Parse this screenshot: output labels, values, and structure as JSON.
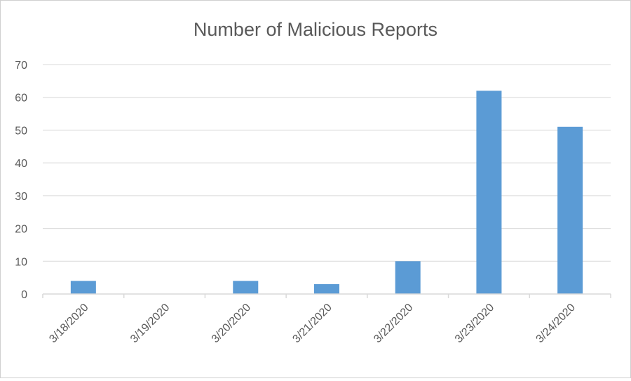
{
  "chart_data": {
    "type": "bar",
    "title": "Number of Malicious Reports",
    "xlabel": "",
    "ylabel": "",
    "categories": [
      "3/18/2020",
      "3/19/2020",
      "3/20/2020",
      "3/21/2020",
      "3/22/2020",
      "3/23/2020",
      "3/24/2020"
    ],
    "values": [
      4,
      0,
      4,
      3,
      10,
      62,
      51
    ],
    "ylim": [
      0,
      70
    ],
    "yticks": [
      0,
      10,
      20,
      30,
      40,
      50,
      60,
      70
    ],
    "grid": true,
    "legend": "none",
    "colors": {
      "bar": "#5b9bd5",
      "grid": "#d9d9d9",
      "text": "#595959"
    }
  }
}
